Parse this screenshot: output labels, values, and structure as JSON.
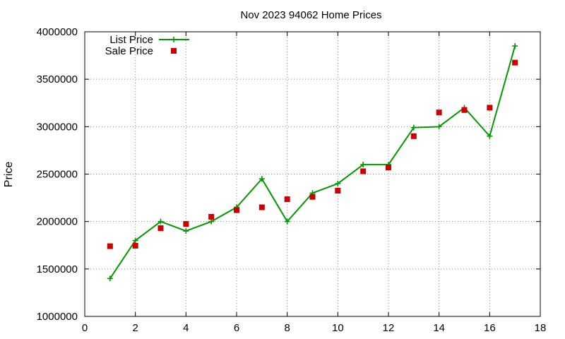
{
  "chart_data": {
    "type": "line",
    "title": "Nov 2023 94062 Home Prices",
    "xlabel": "",
    "ylabel": "Price",
    "xlim": [
      0,
      18
    ],
    "ylim": [
      1000000,
      4000000
    ],
    "xticks": [
      0,
      2,
      4,
      6,
      8,
      10,
      12,
      14,
      16,
      18
    ],
    "yticks": [
      1000000,
      1500000,
      2000000,
      2500000,
      3000000,
      3500000,
      4000000
    ],
    "grid": true,
    "legend_position": "top-left",
    "series": [
      {
        "name": "List Price",
        "style": "line-points",
        "marker": "plus",
        "color": "#009900",
        "x": [
          1,
          2,
          3,
          4,
          5,
          6,
          7,
          8,
          9,
          10,
          11,
          12,
          13,
          14,
          15,
          16,
          17
        ],
        "y": [
          1400000,
          1800000,
          2000000,
          1900000,
          2000000,
          2150000,
          2450000,
          2000000,
          2300000,
          2400000,
          2600000,
          2600000,
          2990000,
          3000000,
          3200000,
          2900000,
          3850000
        ]
      },
      {
        "name": "Sale Price",
        "style": "points",
        "marker": "square",
        "color": "#cc0000",
        "x": [
          1,
          2,
          3,
          4,
          5,
          6,
          7,
          8,
          9,
          10,
          11,
          12,
          13,
          14,
          15,
          16,
          17
        ],
        "y": [
          1740000,
          1745000,
          1930000,
          1975000,
          2050000,
          2120000,
          2150000,
          2235000,
          2260000,
          2325000,
          2530000,
          2570000,
          2900000,
          3150000,
          3175000,
          3200000,
          3675000
        ]
      }
    ]
  }
}
